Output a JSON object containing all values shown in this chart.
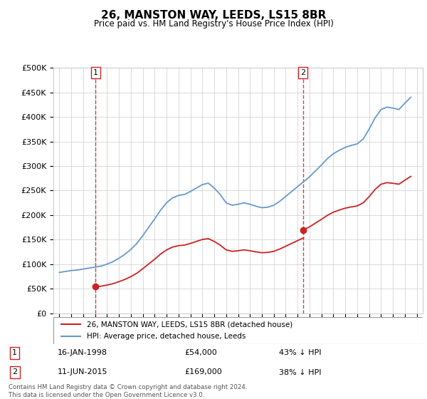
{
  "title": "26, MANSTON WAY, LEEDS, LS15 8BR",
  "subtitle": "Price paid vs. HM Land Registry's House Price Index (HPI)",
  "legend_line1": "26, MANSTON WAY, LEEDS, LS15 8BR (detached house)",
  "legend_line2": "HPI: Average price, detached house, Leeds",
  "annotation1_date": "16-JAN-1998",
  "annotation1_price": 54000,
  "annotation1_text": "43% ↓ HPI",
  "annotation1_year": 1998.04,
  "annotation2_date": "11-JUN-2015",
  "annotation2_price": 169000,
  "annotation2_text": "38% ↓ HPI",
  "annotation2_year": 2015.44,
  "footer": "Contains HM Land Registry data © Crown copyright and database right 2024.\nThis data is licensed under the Open Government Licence v3.0.",
  "hpi_color": "#6699cc",
  "price_color": "#cc2222",
  "background_color": "#ffffff",
  "ylim": [
    0,
    500000
  ],
  "yticks": [
    0,
    50000,
    100000,
    150000,
    200000,
    250000,
    300000,
    350000,
    400000,
    450000,
    500000
  ],
  "xlim_start": 1994.5,
  "xlim_end": 2025.5,
  "years_hpi": [
    1995,
    1995.5,
    1996,
    1996.5,
    1997,
    1997.5,
    1998,
    1998.5,
    1999,
    1999.5,
    2000,
    2000.5,
    2001,
    2001.5,
    2002,
    2002.5,
    2003,
    2003.5,
    2004,
    2004.5,
    2005,
    2005.5,
    2006,
    2006.5,
    2007,
    2007.5,
    2008,
    2008.5,
    2009,
    2009.5,
    2010,
    2010.5,
    2011,
    2011.5,
    2012,
    2012.5,
    2013,
    2013.5,
    2014,
    2014.5,
    2015,
    2015.5,
    2016,
    2016.5,
    2017,
    2017.5,
    2018,
    2018.5,
    2019,
    2019.5,
    2020,
    2020.5,
    2021,
    2021.5,
    2022,
    2022.5,
    2023,
    2023.5,
    2024,
    2024.5
  ],
  "hpi_values": [
    83000,
    85000,
    87000,
    88000,
    90000,
    92000,
    94000,
    96000,
    100000,
    105000,
    112000,
    120000,
    130000,
    142000,
    158000,
    175000,
    192000,
    210000,
    225000,
    235000,
    240000,
    242000,
    248000,
    255000,
    262000,
    265000,
    255000,
    242000,
    225000,
    220000,
    222000,
    225000,
    222000,
    218000,
    215000,
    216000,
    220000,
    228000,
    238000,
    248000,
    258000,
    268000,
    278000,
    290000,
    302000,
    315000,
    325000,
    332000,
    338000,
    342000,
    345000,
    355000,
    375000,
    398000,
    415000,
    420000,
    418000,
    415000,
    428000,
    440000
  ]
}
